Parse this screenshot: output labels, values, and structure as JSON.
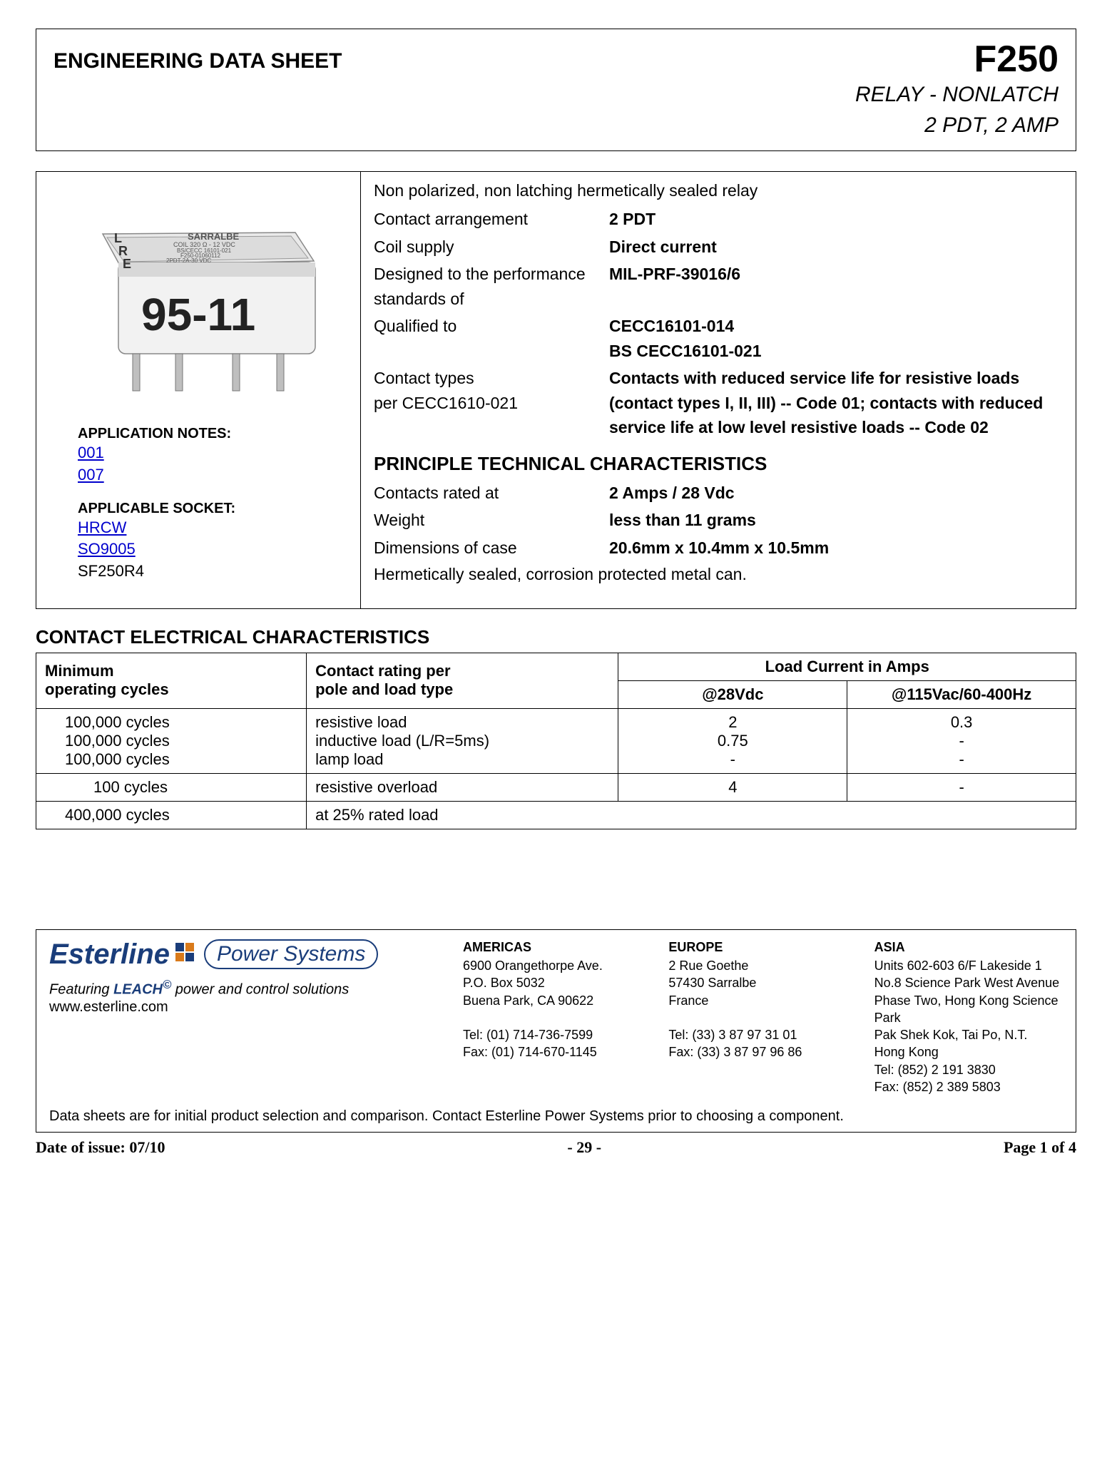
{
  "colors": {
    "border": "#000000",
    "link": "#0000cc",
    "brand": "#1a3d7a",
    "background": "#ffffff"
  },
  "header": {
    "title": "ENGINEERING DATA SHEET",
    "part": "F250",
    "sub1": "RELAY - NONLATCH",
    "sub2": "2 PDT, 2 AMP"
  },
  "image": {
    "label_main": "95-11",
    "label_brand": "SARRALBE",
    "label_coil": "COIL 320 Ω - 12 VDC",
    "label_std1": "BS/CECC 16101-021",
    "label_std2": "F250-01060112",
    "label_std3": "2PDT-2A-30 VDC",
    "lre_l": "L",
    "lre_r": "R",
    "lre_e": "E"
  },
  "notes": {
    "app_label": "APPLICATION NOTES:",
    "app_links": [
      "001",
      "007"
    ],
    "socket_label": "APPLICABLE SOCKET:",
    "socket_links": [
      "HRCW",
      "SO9005"
    ],
    "socket_plain": [
      "SF250R4"
    ]
  },
  "intro": "Non polarized, non latching hermetically sealed relay",
  "specs1": [
    {
      "label": "Contact arrangement",
      "value": "2 PDT"
    },
    {
      "label": "Coil supply",
      "value": "Direct current"
    },
    {
      "label": "Designed to the performance standards of",
      "value": "MIL-PRF-39016/6"
    },
    {
      "label": "Qualified to",
      "value": "CECC16101-014\nBS CECC16101-021"
    },
    {
      "label": "Contact types\nper CECC1610-021",
      "value": "Contacts with reduced service life for resistive loads (contact types I, II, III) -- Code 01; contacts with reduced service life at low level resistive loads -- Code 02"
    }
  ],
  "tech_title": "PRINCIPLE TECHNICAL CHARACTERISTICS",
  "specs2": [
    {
      "label": "Contacts rated at",
      "value": "2 Amps / 28 Vdc"
    },
    {
      "label": "Weight",
      "value": "less than 11 grams"
    },
    {
      "label": "Dimensions of case",
      "value": "20.6mm x 10.4mm x 10.5mm"
    }
  ],
  "hermetic": "Hermetically sealed, corrosion protected metal can.",
  "contact_title": "CONTACT ELECTRICAL CHARACTERISTICS",
  "contact_table": {
    "h_min": "Minimum\noperating cycles",
    "h_rating": "Contact rating per\npole and load type",
    "h_load": "Load Current in Amps",
    "h_28v": "@28Vdc",
    "h_115v": "@115Vac/60-400Hz",
    "rows": [
      {
        "cycles": "100,000 cycles",
        "rating": "resistive load",
        "v28": "2",
        "v115": "0.3"
      },
      {
        "cycles": "100,000 cycles",
        "rating": "inductive load (L/R=5ms)",
        "v28": "0.75",
        "v115": "-"
      },
      {
        "cycles": "100,000 cycles",
        "rating": "lamp load",
        "v28": "-",
        "v115": "-"
      }
    ],
    "row_overload": {
      "cycles": "100 cycles",
      "rating": "resistive overload",
      "v28": "4",
      "v115": "-"
    },
    "row_25pct": {
      "cycles": "400,000 cycles",
      "rating": "at 25% rated load"
    }
  },
  "footer": {
    "brand_name": "Esterline",
    "brand_sub": "Power Systems",
    "tagline_pre": "Featuring ",
    "tagline_leach": "LEACH",
    "tagline_post": " power and control solutions",
    "website": "www.esterline.com",
    "regions": [
      {
        "name": "AMERICAS",
        "lines": [
          "6900 Orangethorpe Ave.",
          "P.O. Box 5032",
          "Buena Park, CA 90622",
          "",
          "Tel: (01) 714-736-7599",
          "Fax: (01) 714-670-1145"
        ]
      },
      {
        "name": "EUROPE",
        "lines": [
          "2 Rue Goethe",
          "57430 Sarralbe",
          "France",
          "",
          "Tel: (33) 3 87 97 31 01",
          "Fax: (33) 3 87 97 96 86"
        ]
      },
      {
        "name": "ASIA",
        "lines": [
          "Units 602-603 6/F Lakeside 1",
          "No.8 Science Park West Avenue",
          "Phase Two, Hong Kong Science Park",
          "Pak Shek Kok, Tai Po, N.T.",
          "Hong Kong",
          "Tel: (852) 2 191 3830",
          "Fax: (852) 2 389 5803"
        ]
      }
    ],
    "note": "Data sheets are for initial product selection and comparison. Contact Esterline Power Systems prior to choosing a component."
  },
  "page_footer": {
    "date": "Date of issue: 07/10",
    "page_center": "- 29 -",
    "page_right": "Page 1 of 4"
  }
}
